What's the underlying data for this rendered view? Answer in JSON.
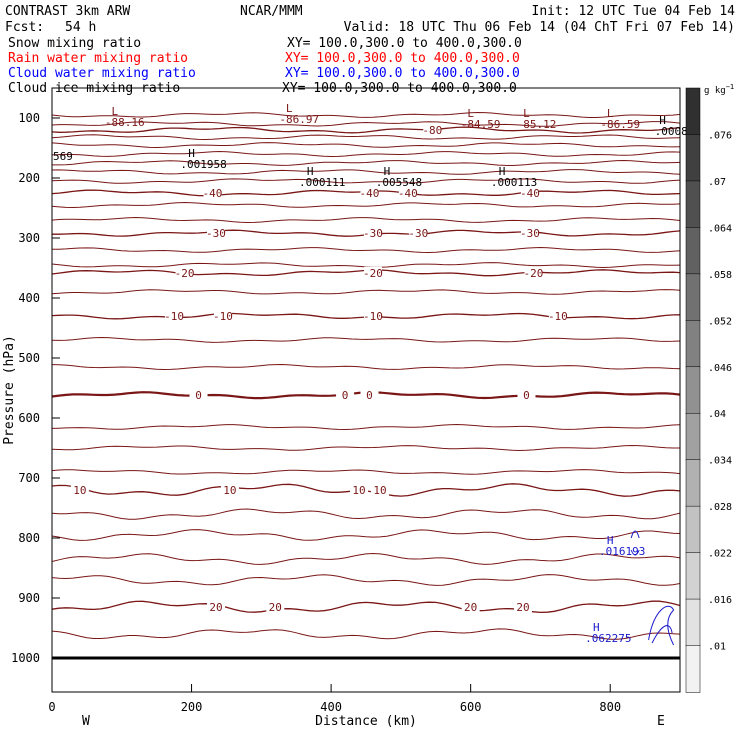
{
  "header": {
    "left_title": "CONTRAST  3km ARW",
    "center_title": "NCAR/MMM",
    "init": "Init: 12 UTC Tue 04 Feb 14",
    "fcst_label": "Fcst:",
    "fcst_value": "54 h",
    "valid": "Valid: 18 UTC Thu 06 Feb 14 (04 ChT Fri 07 Feb 14)"
  },
  "fields": [
    {
      "name": "Snow mixing ratio",
      "xy": "XY= 100.0,300.0 to 400.0,300.0",
      "color": "#000000"
    },
    {
      "name": "Rain water mixing ratio",
      "xy": "XY= 100.0,300.0 to 400.0,300.0",
      "color": "#ff0000"
    },
    {
      "name": "Cloud water mixing ratio",
      "xy": "XY= 100.0,300.0 to 400.0,300.0",
      "color": "#0000ff"
    },
    {
      "name": "Cloud ice mixing ratio",
      "xy": "XY= 100.0,300.0 to 400.0,300.0",
      "color": "#000000"
    }
  ],
  "colors": {
    "temperature": "#7a1616",
    "cloud_water": "#1a1acc",
    "frame": "#000000",
    "colorbar_top": "#303030",
    "colorbar_bottom": "#f2f2f2"
  },
  "chart_data": {
    "type": "contour",
    "xlabel": "Distance (km)",
    "ylabel": "Pressure (hPa)",
    "xlim": [
      0,
      900
    ],
    "ylim": [
      1050,
      50
    ],
    "xticks": [
      "0",
      "200",
      "400",
      "600",
      "800"
    ],
    "yticks": [
      "100",
      "200",
      "300",
      "400",
      "500",
      "600",
      "700",
      "800",
      "900",
      "1000"
    ],
    "end_labels": {
      "west": "W",
      "east": "E"
    },
    "colorbar": {
      "unit": "g kg",
      "unit_exp": "−1",
      "ticks": [
        ".076",
        ".07",
        ".064",
        ".058",
        ".052",
        ".046",
        ".04",
        ".034",
        ".028",
        ".022",
        ".016",
        ".01"
      ]
    },
    "temperature_contours": [
      {
        "value": -80,
        "pressure": 120,
        "labels": [
          {
            "text": "-80",
            "x": 545
          }
        ]
      },
      {
        "value": -40,
        "pressure": 225,
        "labels": [
          {
            "text": "-40",
            "x": 230
          },
          {
            "text": "-40",
            "x": 455
          },
          {
            "text": "-40",
            "x": 510
          },
          {
            "text": "-40",
            "x": 685
          }
        ]
      },
      {
        "value": -30,
        "pressure": 292,
        "labels": [
          {
            "text": "-30",
            "x": 235
          },
          {
            "text": "-30",
            "x": 460
          },
          {
            "text": "-30",
            "x": 525
          },
          {
            "text": "-30",
            "x": 685
          }
        ]
      },
      {
        "value": -20,
        "pressure": 358,
        "labels": [
          {
            "text": "-20",
            "x": 190
          },
          {
            "text": "-20",
            "x": 460
          },
          {
            "text": "-20",
            "x": 690
          }
        ]
      },
      {
        "value": -10,
        "pressure": 430,
        "labels": [
          {
            "text": "-10",
            "x": 175
          },
          {
            "text": "-10",
            "x": 245
          },
          {
            "text": "-10",
            "x": 460
          },
          {
            "text": "-10",
            "x": 725
          }
        ]
      },
      {
        "value": 0,
        "pressure": 562,
        "labels": [
          {
            "text": "0",
            "x": 210
          },
          {
            "text": "0",
            "x": 420
          },
          {
            "text": "0",
            "x": 455
          },
          {
            "text": "0",
            "x": 680
          }
        ]
      },
      {
        "value": 10,
        "pressure": 720,
        "labels": [
          {
            "text": "10",
            "x": 40
          },
          {
            "text": "10",
            "x": 255
          },
          {
            "text": "10",
            "x": 440
          },
          {
            "text": "10",
            "x": 470
          }
        ]
      },
      {
        "value": 20,
        "pressure": 915,
        "labels": [
          {
            "text": "20",
            "x": 235
          },
          {
            "text": "20",
            "x": 320
          },
          {
            "text": "20",
            "x": 600
          },
          {
            "text": "20",
            "x": 675
          }
        ]
      }
    ],
    "background_isotherms_hpa": [
      95,
      110,
      132,
      145,
      160,
      175,
      190,
      205,
      245,
      270,
      320,
      345,
      390,
      470,
      515,
      615,
      650,
      690,
      760,
      795,
      835,
      870,
      960
    ],
    "surface_pressure": 1000,
    "extrema": [
      {
        "type": "L",
        "value": "-88.16",
        "x": 90,
        "p": 95
      },
      {
        "type": "L",
        "value": "-86.97",
        "x": 340,
        "p": 90
      },
      {
        "type": "L",
        "value": "-84.59",
        "x": 600,
        "p": 98
      },
      {
        "type": "L",
        "value": "-85.12",
        "x": 680,
        "p": 98
      },
      {
        "type": "L",
        "value": "-86.59",
        "x": 800,
        "p": 98
      },
      {
        "type": "H",
        "value": ".00080",
        "x": 875,
        "p": 110
      },
      {
        "type": "H",
        "value": ".001958",
        "x": 200,
        "p": 165
      },
      {
        "type": "H",
        "value": ".000111",
        "x": 370,
        "p": 195
      },
      {
        "type": "H",
        "value": ".005548",
        "x": 480,
        "p": 195
      },
      {
        "type": "H",
        "value": ".000113",
        "x": 645,
        "p": 195
      },
      {
        "type": "H",
        "value": ".016193",
        "x": 800,
        "p": 810
      },
      {
        "type": "H",
        "value": ".062275",
        "x": 780,
        "p": 955
      }
    ],
    "edge_label": "569"
  }
}
